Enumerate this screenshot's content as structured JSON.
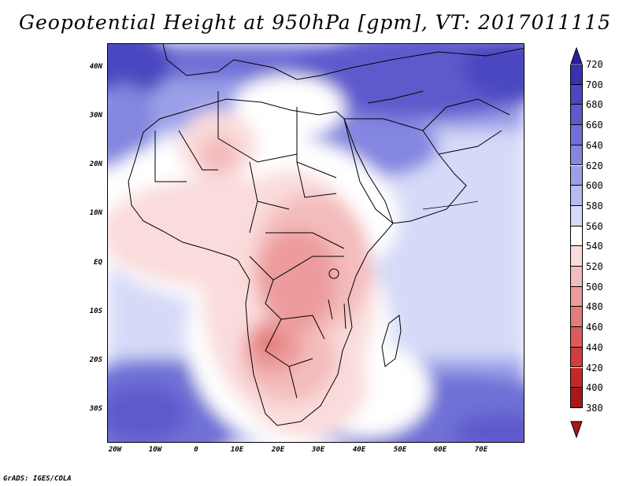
{
  "title": "Geopotential Height at 950hPa [gpm], VT: 2017011115",
  "lat_labels": [
    "40N",
    "30N",
    "20N",
    "10N",
    "EQ",
    "10S",
    "20S",
    "30S"
  ],
  "lon_labels": [
    "20W",
    "10W",
    "0",
    "10E",
    "20E",
    "30E",
    "40E",
    "50E",
    "60E",
    "70E"
  ],
  "colorbar": {
    "labels": [
      "720",
      "700",
      "680",
      "660",
      "640",
      "620",
      "600",
      "580",
      "560",
      "540",
      "520",
      "500",
      "480",
      "460",
      "440",
      "420",
      "400",
      "380"
    ],
    "colors": [
      "#2a1fa0",
      "#3a30b0",
      "#4c46c0",
      "#5e5acc",
      "#7070d6",
      "#8486e0",
      "#9ba0e8",
      "#b6bcf0",
      "#d6daf8",
      "#ffffff",
      "#fadcdc",
      "#f4bcbc",
      "#ec9c9c",
      "#e47c7c",
      "#dc5c5c",
      "#d23c3c",
      "#c42828",
      "#a81818"
    ]
  },
  "footer": "GrADS: IGES/COLA"
}
